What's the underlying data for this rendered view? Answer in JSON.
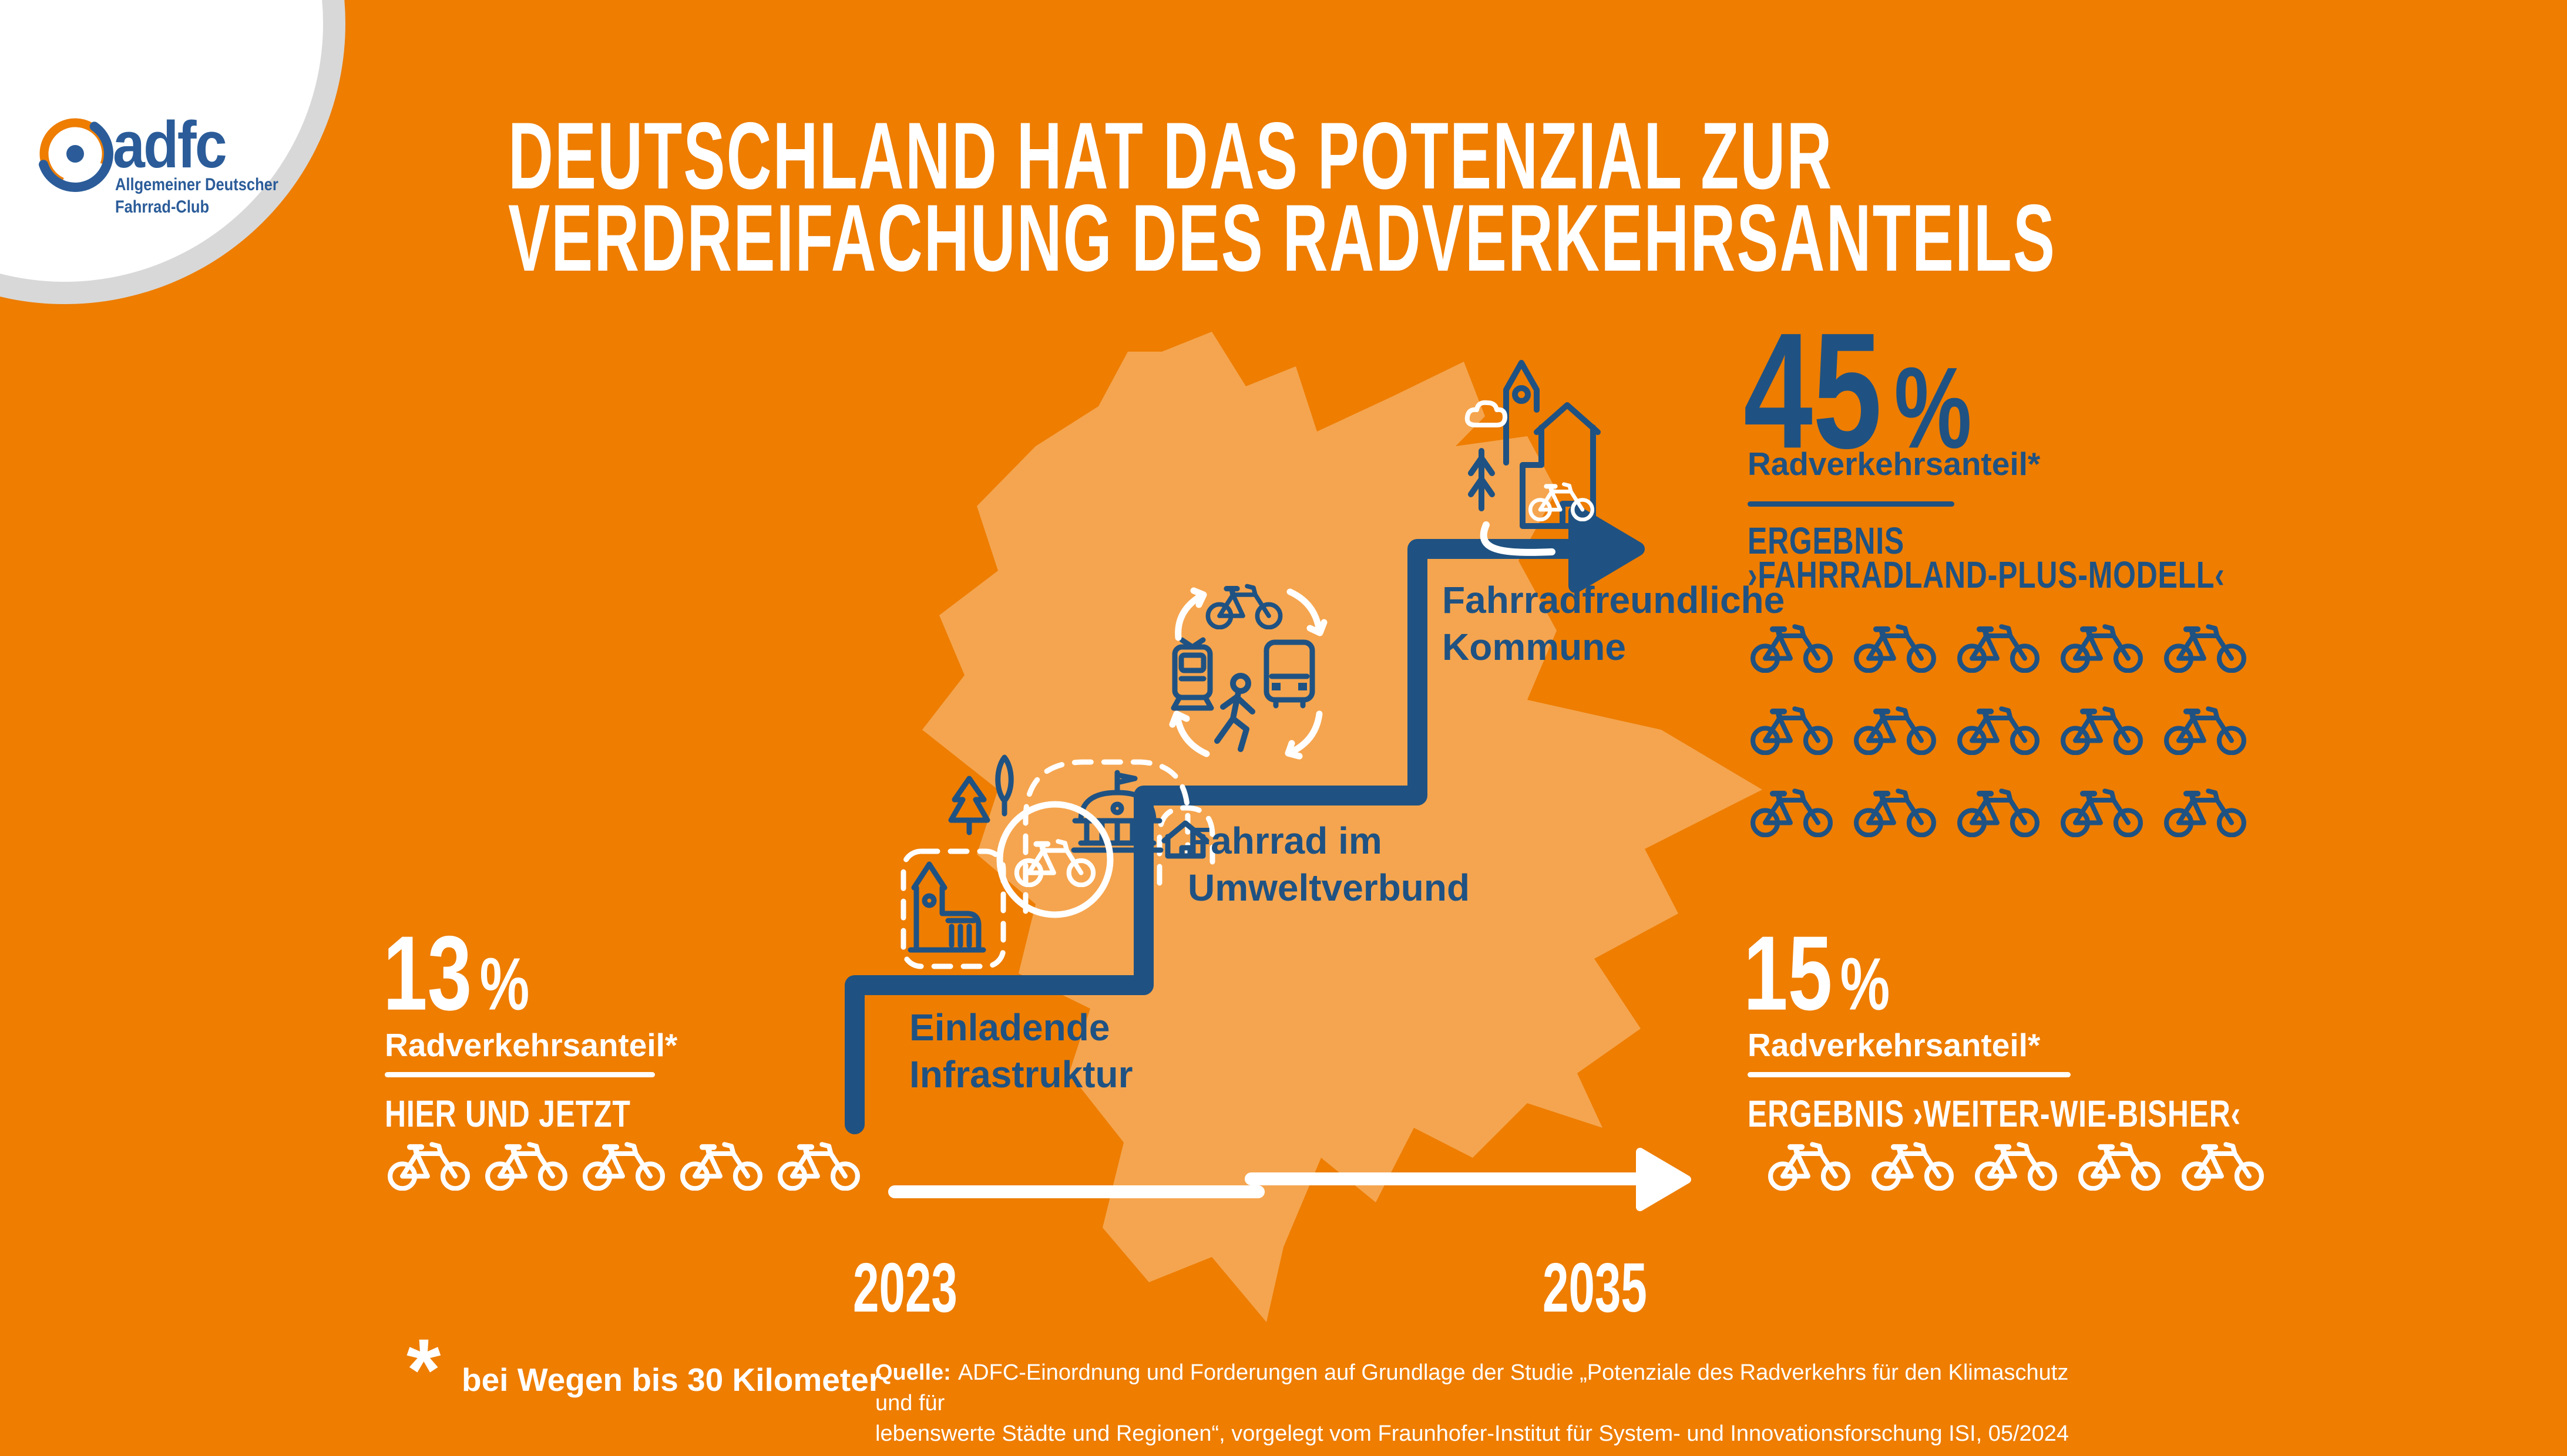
{
  "colors": {
    "background": "#EE7D00",
    "map": "#F5A54F",
    "blue": "#1F5282",
    "logo_blue": "#2B5C99",
    "white": "#FFFFFF"
  },
  "logo": {
    "wordmark": "adfc",
    "tagline_line1": "Allgemeiner Deutscher",
    "tagline_line2": "Fahrrad-Club"
  },
  "title": {
    "line1": "DEUTSCHLAND HAT DAS POTENZIAL ZUR",
    "line2": "VERDREIFACHUNG DES RADVERKEHRSANTEILS"
  },
  "current": {
    "value": "13",
    "unit": "%",
    "label": "Radverkehrsanteil*",
    "scenario": "HIER UND JETZT",
    "bikes": 5
  },
  "plus_model": {
    "value": "45",
    "unit": "%",
    "label": "Radverkehrsanteil*",
    "result_line1": "ERGEBNIS",
    "result_line2": "›FAHRRADLAND-PLUS-MODELL‹",
    "bikes": 15
  },
  "business_as_usual": {
    "value": "15",
    "unit": "%",
    "label": "Radverkehrsanteil*",
    "result": "ERGEBNIS ›WEITER-WIE-BISHER‹",
    "bikes": 5
  },
  "steps": [
    {
      "label_line1": "Einladende",
      "label_line2": "Infrastruktur"
    },
    {
      "label_line1": "Fahrrad im",
      "label_line2": "Umweltverbund"
    },
    {
      "label_line1": "Fahrradfreundliche",
      "label_line2": "Kommune"
    }
  ],
  "timeline": {
    "start_year": "2023",
    "end_year": "2035"
  },
  "footnote": {
    "symbol": "*",
    "text": "bei Wegen bis 30 Kilometer"
  },
  "source": {
    "label": "Quelle:",
    "text": "ADFC-Einordnung und Forderungen auf Grundlage der Studie „Potenziale des Radverkehrs für den Klimaschutz und für\nlebenswerte Städte und Regionen“, vorgelegt vom Fraunhofer-Institut für System- und Innovationsforschung ISI, 05/2024"
  },
  "chart_data": {
    "type": "pictogram",
    "title": "Deutschland hat das Potenzial zur Verdreifachung des Radverkehrsanteils",
    "categories": [
      "2023 Hier und jetzt",
      "2035 Ergebnis ›Weiter-wie-bisher‹",
      "2035 Ergebnis ›Fahrradland-Plus-Modell‹"
    ],
    "values": [
      13,
      15,
      45
    ],
    "unit": "% Radverkehrsanteil bei Wegen bis 30 Kilometer",
    "icons_per_category": [
      5,
      5,
      15
    ],
    "steps_to_target": [
      "Einladende Infrastruktur",
      "Fahrrad im Umweltverbund",
      "Fahrradfreundliche Kommune"
    ]
  }
}
